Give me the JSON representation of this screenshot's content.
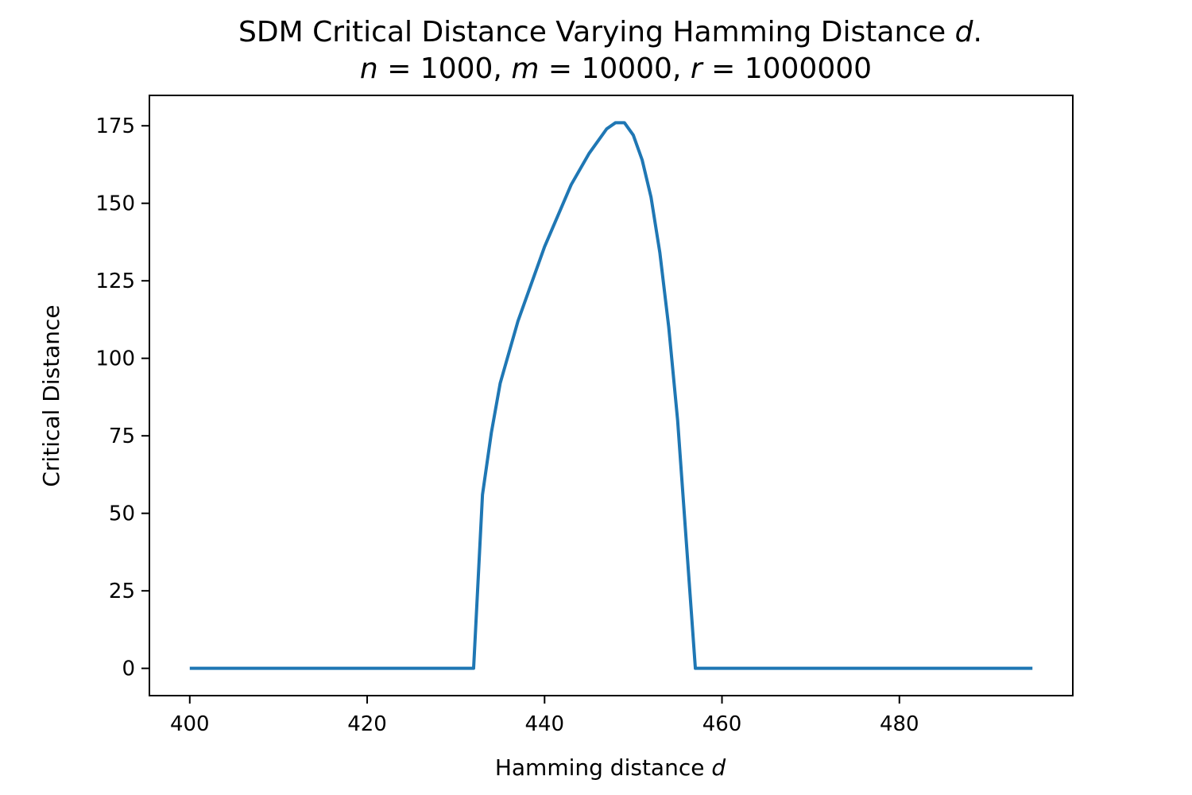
{
  "chart_data": {
    "type": "line",
    "title_lines": [
      "SDM Critical Distance Varying Hamming Distance d.",
      "n = 1000, m = 10000, r = 1000000"
    ],
    "title_parts": {
      "line1_prefix": "SDM Critical Distance Varying Hamming Distance ",
      "line1_var": "d",
      "line1_suffix": ".",
      "n_var": "n",
      "n_val": " = 1000, ",
      "m_var": "m",
      "m_val": " = 10000, ",
      "r_var": "r",
      "r_val": " = 1000000"
    },
    "xlabel": "Hamming distance d",
    "xlabel_parts": {
      "prefix": "Hamming distance ",
      "var": "d"
    },
    "ylabel": "Critical Distance",
    "xlim": [
      395.45,
      499.55
    ],
    "ylim": [
      -8.8,
      184.8
    ],
    "xticks": [
      400,
      420,
      440,
      460,
      480
    ],
    "yticks": [
      0,
      25,
      50,
      75,
      100,
      125,
      150,
      175
    ],
    "grid": false,
    "series": [
      {
        "color": "#1f77b4",
        "x": [
          400,
          410,
          420,
          430,
          432,
          433,
          434,
          435,
          437,
          440,
          443,
          445,
          447,
          448,
          449,
          450,
          451,
          452,
          453,
          454,
          455,
          456,
          457,
          460,
          470,
          480,
          495
        ],
        "y": [
          0,
          0,
          0,
          0,
          0,
          56,
          76,
          92,
          112,
          136,
          156,
          166,
          174,
          176,
          176,
          172,
          164,
          152,
          134,
          110,
          80,
          40,
          0,
          0,
          0,
          0,
          0
        ]
      }
    ]
  }
}
